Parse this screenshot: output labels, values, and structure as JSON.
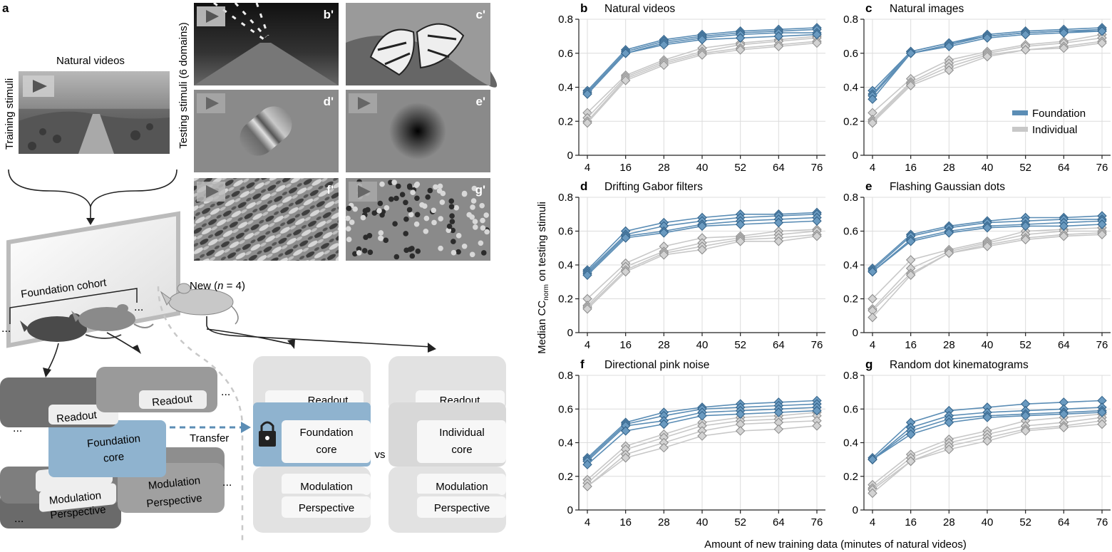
{
  "panel_a": {
    "letter": "a",
    "natural_videos": "Natural videos",
    "training_stimuli": "Training stimuli",
    "testing_stimuli": "Testing stimuli (6 domains)",
    "thumb_tags": [
      "b'",
      "c'",
      "d'",
      "e'",
      "f'",
      "g'"
    ],
    "foundation_cohort": "Foundation cohort",
    "new_prefix": "New (",
    "new_n": "n",
    "new_suffix": " = 4)",
    "ellipsis": "...",
    "readout": "Readout",
    "foundation_core_1": "Foundation",
    "foundation_core_2": "core",
    "individual_core_1": "Individual",
    "individual_core_2": "core",
    "modulation": "Modulation",
    "perspective": "Perspective",
    "transfer": "Transfer",
    "vs": "vs"
  },
  "shared_axes": {
    "ylabel_main": "Median CC",
    "ylabel_sub": "norm",
    "ylabel_rest": " on testing stimuli",
    "xlabel": "Amount of new training data (minutes of natural videos)",
    "legend_foundation": "Foundation",
    "legend_individual": "Individual"
  },
  "colors": {
    "foundation": "#5b8db5",
    "foundation_fill": "#6a9ac0",
    "individual": "#c8c8c8",
    "individual_fill": "#d2d2d2",
    "core_blue": "#8fb3cf"
  },
  "chart_data": [
    {
      "type": "line",
      "letter": "b",
      "title": "Natural videos",
      "x": [
        4,
        16,
        28,
        40,
        52,
        64,
        76
      ],
      "xticks": [
        "4",
        "16",
        "28",
        "40",
        "52",
        "64",
        "76"
      ],
      "yticks": [
        "0",
        "0.2",
        "0.4",
        "0.6",
        "0.8"
      ],
      "ylim": [
        0,
        0.8
      ],
      "series": [
        {
          "name": "Foundation",
          "values": [
            0.38,
            0.62,
            0.68,
            0.71,
            0.73,
            0.74,
            0.75
          ]
        },
        {
          "name": "Foundation",
          "values": [
            0.37,
            0.61,
            0.67,
            0.7,
            0.72,
            0.73,
            0.74
          ]
        },
        {
          "name": "Foundation",
          "values": [
            0.36,
            0.6,
            0.66,
            0.69,
            0.71,
            0.72,
            0.72
          ]
        },
        {
          "name": "Foundation",
          "values": [
            0.36,
            0.6,
            0.65,
            0.68,
            0.69,
            0.7,
            0.71
          ]
        },
        {
          "name": "Individual",
          "values": [
            0.25,
            0.47,
            0.56,
            0.63,
            0.66,
            0.68,
            0.7
          ]
        },
        {
          "name": "Individual",
          "values": [
            0.22,
            0.46,
            0.55,
            0.61,
            0.65,
            0.67,
            0.69
          ]
        },
        {
          "name": "Individual",
          "values": [
            0.2,
            0.45,
            0.54,
            0.6,
            0.63,
            0.65,
            0.67
          ]
        },
        {
          "name": "Individual",
          "values": [
            0.19,
            0.44,
            0.53,
            0.59,
            0.62,
            0.64,
            0.66
          ]
        }
      ]
    },
    {
      "type": "line",
      "letter": "c",
      "title": "Natural images",
      "x": [
        4,
        16,
        28,
        40,
        52,
        64,
        76
      ],
      "xticks": [
        "4",
        "16",
        "28",
        "40",
        "52",
        "64",
        "76"
      ],
      "yticks": [
        "0",
        "0.2",
        "0.4",
        "0.6",
        "0.8"
      ],
      "ylim": [
        0,
        0.8
      ],
      "series": [
        {
          "name": "Foundation",
          "values": [
            0.38,
            0.61,
            0.66,
            0.71,
            0.73,
            0.74,
            0.75
          ]
        },
        {
          "name": "Foundation",
          "values": [
            0.36,
            0.61,
            0.66,
            0.7,
            0.72,
            0.73,
            0.74
          ]
        },
        {
          "name": "Foundation",
          "values": [
            0.35,
            0.6,
            0.65,
            0.7,
            0.72,
            0.73,
            0.73
          ]
        },
        {
          "name": "Foundation",
          "values": [
            0.33,
            0.6,
            0.64,
            0.69,
            0.71,
            0.72,
            0.73
          ]
        },
        {
          "name": "Individual",
          "values": [
            0.25,
            0.45,
            0.56,
            0.61,
            0.65,
            0.67,
            0.71
          ]
        },
        {
          "name": "Individual",
          "values": [
            0.21,
            0.43,
            0.54,
            0.6,
            0.64,
            0.66,
            0.69
          ]
        },
        {
          "name": "Individual",
          "values": [
            0.2,
            0.42,
            0.52,
            0.59,
            0.62,
            0.64,
            0.67
          ]
        },
        {
          "name": "Individual",
          "values": [
            0.19,
            0.41,
            0.5,
            0.58,
            0.62,
            0.63,
            0.66
          ]
        }
      ]
    },
    {
      "type": "line",
      "letter": "d",
      "title": "Drifting Gabor filters",
      "x": [
        4,
        16,
        28,
        40,
        52,
        64,
        76
      ],
      "xticks": [
        "4",
        "16",
        "28",
        "40",
        "52",
        "64",
        "76"
      ],
      "yticks": [
        "0",
        "0.2",
        "0.4",
        "0.6",
        "0.8"
      ],
      "ylim": [
        0,
        0.8
      ],
      "series": [
        {
          "name": "Foundation",
          "values": [
            0.37,
            0.6,
            0.65,
            0.68,
            0.7,
            0.7,
            0.71
          ]
        },
        {
          "name": "Foundation",
          "values": [
            0.36,
            0.58,
            0.63,
            0.66,
            0.68,
            0.69,
            0.7
          ]
        },
        {
          "name": "Foundation",
          "values": [
            0.35,
            0.57,
            0.6,
            0.64,
            0.66,
            0.67,
            0.68
          ]
        },
        {
          "name": "Foundation",
          "values": [
            0.34,
            0.56,
            0.59,
            0.63,
            0.64,
            0.65,
            0.66
          ]
        },
        {
          "name": "Individual",
          "values": [
            0.2,
            0.41,
            0.51,
            0.56,
            0.57,
            0.6,
            0.61
          ]
        },
        {
          "name": "Individual",
          "values": [
            0.16,
            0.39,
            0.48,
            0.53,
            0.56,
            0.58,
            0.6
          ]
        },
        {
          "name": "Individual",
          "values": [
            0.15,
            0.37,
            0.47,
            0.51,
            0.55,
            0.56,
            0.58
          ]
        },
        {
          "name": "Individual",
          "values": [
            0.14,
            0.36,
            0.46,
            0.49,
            0.54,
            0.54,
            0.57
          ]
        }
      ]
    },
    {
      "type": "line",
      "letter": "e",
      "title": "Flashing Gaussian dots",
      "x": [
        4,
        16,
        28,
        40,
        52,
        64,
        76
      ],
      "xticks": [
        "4",
        "16",
        "28",
        "40",
        "52",
        "64",
        "76"
      ],
      "yticks": [
        "0",
        "0.2",
        "0.4",
        "0.6",
        "0.8"
      ],
      "ylim": [
        0,
        0.8
      ],
      "series": [
        {
          "name": "Foundation",
          "values": [
            0.38,
            0.58,
            0.63,
            0.66,
            0.68,
            0.68,
            0.69
          ]
        },
        {
          "name": "Foundation",
          "values": [
            0.37,
            0.57,
            0.62,
            0.65,
            0.66,
            0.67,
            0.67
          ]
        },
        {
          "name": "Foundation",
          "values": [
            0.36,
            0.55,
            0.6,
            0.63,
            0.64,
            0.65,
            0.66
          ]
        },
        {
          "name": "Foundation",
          "values": [
            0.36,
            0.54,
            0.59,
            0.62,
            0.63,
            0.63,
            0.64
          ]
        },
        {
          "name": "Individual",
          "values": [
            0.2,
            0.43,
            0.49,
            0.54,
            0.6,
            0.61,
            0.62
          ]
        },
        {
          "name": "Individual",
          "values": [
            0.14,
            0.38,
            0.48,
            0.53,
            0.58,
            0.6,
            0.6
          ]
        },
        {
          "name": "Individual",
          "values": [
            0.13,
            0.35,
            0.47,
            0.52,
            0.56,
            0.58,
            0.59
          ]
        },
        {
          "name": "Individual",
          "values": [
            0.09,
            0.34,
            0.47,
            0.51,
            0.55,
            0.57,
            0.58
          ]
        }
      ]
    },
    {
      "type": "line",
      "letter": "f",
      "title": "Directional pink noise",
      "x": [
        4,
        16,
        28,
        40,
        52,
        64,
        76
      ],
      "xticks": [
        "4",
        "16",
        "28",
        "40",
        "52",
        "64",
        "76"
      ],
      "yticks": [
        "0",
        "0.2",
        "0.4",
        "0.6",
        "0.8"
      ],
      "ylim": [
        0,
        0.8
      ],
      "series": [
        {
          "name": "Foundation",
          "values": [
            0.31,
            0.52,
            0.58,
            0.61,
            0.63,
            0.64,
            0.65
          ]
        },
        {
          "name": "Foundation",
          "values": [
            0.3,
            0.51,
            0.56,
            0.6,
            0.61,
            0.62,
            0.63
          ]
        },
        {
          "name": "Foundation",
          "values": [
            0.29,
            0.5,
            0.53,
            0.58,
            0.59,
            0.6,
            0.61
          ]
        },
        {
          "name": "Foundation",
          "values": [
            0.27,
            0.47,
            0.51,
            0.56,
            0.57,
            0.58,
            0.59
          ]
        },
        {
          "name": "Individual",
          "values": [
            0.18,
            0.38,
            0.45,
            0.52,
            0.55,
            0.56,
            0.58
          ]
        },
        {
          "name": "Individual",
          "values": [
            0.16,
            0.36,
            0.43,
            0.5,
            0.53,
            0.54,
            0.56
          ]
        },
        {
          "name": "Individual",
          "values": [
            0.14,
            0.33,
            0.4,
            0.47,
            0.51,
            0.52,
            0.53
          ]
        },
        {
          "name": "Individual",
          "values": [
            0.14,
            0.31,
            0.37,
            0.44,
            0.47,
            0.48,
            0.5
          ]
        }
      ]
    },
    {
      "type": "line",
      "letter": "g",
      "title": "Random dot kinematograms",
      "x": [
        4,
        16,
        28,
        40,
        52,
        64,
        76
      ],
      "xticks": [
        "4",
        "16",
        "28",
        "40",
        "52",
        "64",
        "76"
      ],
      "yticks": [
        "0",
        "0.2",
        "0.4",
        "0.6",
        "0.8"
      ],
      "ylim": [
        0,
        0.8
      ],
      "series": [
        {
          "name": "Foundation",
          "values": [
            0.31,
            0.52,
            0.59,
            0.61,
            0.63,
            0.64,
            0.65
          ]
        },
        {
          "name": "Foundation",
          "values": [
            0.3,
            0.49,
            0.56,
            0.58,
            0.59,
            0.6,
            0.61
          ]
        },
        {
          "name": "Foundation",
          "values": [
            0.3,
            0.47,
            0.54,
            0.56,
            0.57,
            0.58,
            0.59
          ]
        },
        {
          "name": "Foundation",
          "values": [
            0.3,
            0.45,
            0.52,
            0.55,
            0.56,
            0.57,
            0.58
          ]
        },
        {
          "name": "Individual",
          "values": [
            0.15,
            0.33,
            0.42,
            0.47,
            0.53,
            0.55,
            0.57
          ]
        },
        {
          "name": "Individual",
          "values": [
            0.13,
            0.31,
            0.4,
            0.45,
            0.5,
            0.52,
            0.55
          ]
        },
        {
          "name": "Individual",
          "values": [
            0.12,
            0.29,
            0.38,
            0.43,
            0.48,
            0.5,
            0.53
          ]
        },
        {
          "name": "Individual",
          "values": [
            0.1,
            0.29,
            0.36,
            0.41,
            0.47,
            0.49,
            0.51
          ]
        }
      ]
    }
  ]
}
